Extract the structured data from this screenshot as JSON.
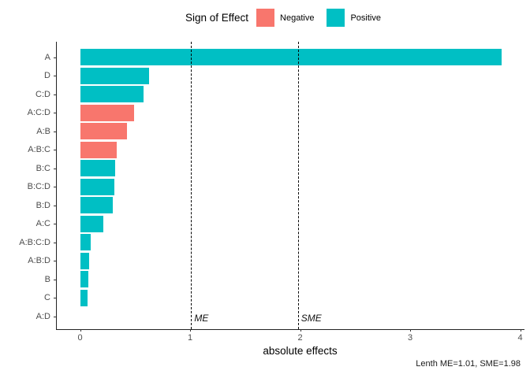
{
  "legend": {
    "title": "Sign of Effect",
    "items": [
      {
        "label": "Negative",
        "color": "#F8766D"
      },
      {
        "label": "Positive",
        "color": "#00BFC4"
      }
    ]
  },
  "chart_data": {
    "type": "bar",
    "orientation": "horizontal",
    "title": "",
    "xlabel": "absolute effects",
    "ylabel": "",
    "categories": [
      "A",
      "D",
      "C:D",
      "A:C:D",
      "A:B",
      "A:B:C",
      "B:C",
      "B:C:D",
      "B:D",
      "A:C",
      "A:B:C:D",
      "A:B:D",
      "B",
      "C",
      "A:D"
    ],
    "values": [
      3.83,
      0.63,
      0.58,
      0.49,
      0.43,
      0.33,
      0.32,
      0.31,
      0.3,
      0.21,
      0.1,
      0.08,
      0.075,
      0.07,
      0
    ],
    "signs": [
      "Positive",
      "Positive",
      "Positive",
      "Negative",
      "Negative",
      "Negative",
      "Positive",
      "Positive",
      "Positive",
      "Positive",
      "Positive",
      "Positive",
      "Positive",
      "Positive",
      "Positive"
    ],
    "sign_colors": {
      "Negative": "#F8766D",
      "Positive": "#00BFC4"
    },
    "x_ticks": [
      0,
      1,
      2,
      3,
      4
    ],
    "xlim": [
      0,
      4
    ],
    "grid": false,
    "legend_position": "top",
    "reference_lines": [
      {
        "label": "ME",
        "value": 1.01
      },
      {
        "label": "SME",
        "value": 1.98
      }
    ],
    "caption": "Lenth ME=1.01, SME=1.98"
  }
}
